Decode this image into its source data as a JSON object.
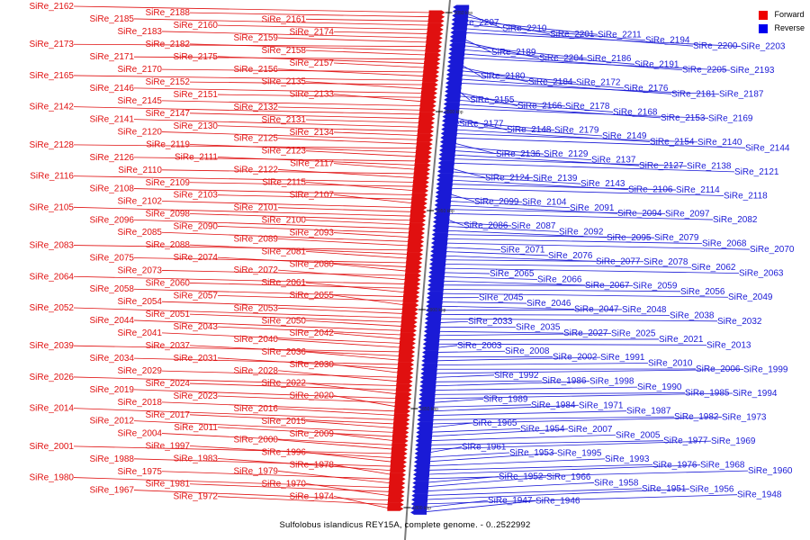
{
  "colors": {
    "forward": "#e01010",
    "reverse": "#1a1ad6",
    "backbone": "#7a7a7a"
  },
  "legend": [
    {
      "label": "Forward",
      "color": "#ee0000"
    },
    {
      "label": "Reverse",
      "color": "#0000ee"
    }
  ],
  "caption": "Sulfolobus islandicus REY15A, complete genome. - 0..2522992",
  "ticks": [
    "2050 kbp",
    "2000 kbp",
    "1950 kbp",
    "1900 kbp",
    "1850 kbp",
    "1800 kbp"
  ],
  "forward_genes": [
    "SiRe_2162",
    "SiRe_2188",
    "SiRe_2161",
    "SiRe_2185",
    "SiRe_2160",
    "SiRe_2174",
    "SiRe_2183",
    "SiRe_2159",
    "SiRe_2173",
    "SiRe_2182",
    "SiRe_2158",
    "SiRe_2171",
    "SiRe_2175",
    "SiRe_2157",
    "SiRe_2170",
    "SiRe_2156",
    "SiRe_2165",
    "SiRe_2152",
    "SiRe_2135",
    "SiRe_2146",
    "SiRe_2151",
    "SiRe_2133",
    "SiRe_2145",
    "SiRe_2132",
    "SiRe_2142",
    "SiRe_2147",
    "SiRe_2131",
    "SiRe_2141",
    "SiRe_2130",
    "SiRe_2134",
    "SiRe_2120",
    "SiRe_2125",
    "SiRe_2128",
    "SiRe_2119",
    "SiRe_2123",
    "SiRe_2126",
    "SiRe_2111",
    "SiRe_2117",
    "SiRe_2110",
    "SiRe_2122",
    "SiRe_2116",
    "SiRe_2109",
    "SiRe_2115",
    "SiRe_2108",
    "SiRe_2103",
    "SiRe_2107",
    "SiRe_2102",
    "SiRe_2101",
    "SiRe_2105",
    "SiRe_2098",
    "SiRe_2100",
    "SiRe_2096",
    "SiRe_2090",
    "SiRe_2093",
    "SiRe_2085",
    "SiRe_2089",
    "SiRe_2083",
    "SiRe_2088",
    "SiRe_2081",
    "SiRe_2075",
    "SiRe_2074",
    "SiRe_2080",
    "SiRe_2073",
    "SiRe_2072",
    "SiRe_2064",
    "SiRe_2060",
    "SiRe_2061",
    "SiRe_2058",
    "SiRe_2057",
    "SiRe_2055",
    "SiRe_2054",
    "SiRe_2053",
    "SiRe_2052",
    "SiRe_2051",
    "SiRe_2050",
    "SiRe_2044",
    "SiRe_2043",
    "SiRe_2042",
    "SiRe_2041",
    "SiRe_2040",
    "SiRe_2039",
    "SiRe_2037",
    "SiRe_2036",
    "SiRe_2034",
    "SiRe_2031",
    "SiRe_2030",
    "SiRe_2029",
    "SiRe_2028",
    "SiRe_2026",
    "SiRe_2024",
    "SiRe_2022",
    "SiRe_2019",
    "SiRe_2023",
    "SiRe_2020",
    "SiRe_2018",
    "SiRe_2016",
    "SiRe_2014",
    "SiRe_2017",
    "SiRe_2015",
    "SiRe_2012",
    "SiRe_2011",
    "SiRe_2009",
    "SiRe_2004",
    "SiRe_2000",
    "SiRe_2001",
    "SiRe_1997",
    "SiRe_1996",
    "SiRe_1988",
    "SiRe_1983",
    "SiRe_1978",
    "SiRe_1975",
    "SiRe_1979",
    "SiRe_1980",
    "SiRe_1981",
    "SiRe_1970",
    "SiRe_1967",
    "SiRe_1972",
    "SiRe_1974"
  ],
  "reverse_genes": [
    "SiRe_2207",
    "SiRe_2210",
    "SiRe_2201",
    "SiRe_2211",
    "SiRe_2194",
    "SiRe_2200",
    "SiRe_2203",
    "SiRe_2189",
    "SiRe_2204",
    "SiRe_2186",
    "SiRe_2191",
    "SiRe_2205",
    "SiRe_2193",
    "SiRe_2180",
    "SiRe_2184",
    "SiRe_2172",
    "SiRe_2176",
    "SiRe_2181",
    "SiRe_2187",
    "SiRe_2155",
    "SiRe_2166",
    "SiRe_2178",
    "SiRe_2168",
    "SiRe_2153",
    "SiRe_2169",
    "SiRe_2177",
    "SiRe_2148",
    "SiRe_2179",
    "SiRe_2149",
    "SiRe_2154",
    "SiRe_2140",
    "SiRe_2144",
    "SiRe_2136",
    "SiRe_2129",
    "SiRe_2137",
    "SiRe_2127",
    "SiRe_2138",
    "SiRe_2121",
    "SiRe_2124",
    "SiRe_2139",
    "SiRe_2143",
    "SiRe_2106",
    "SiRe_2114",
    "SiRe_2118",
    "SiRe_2099",
    "SiRe_2104",
    "SiRe_2091",
    "SiRe_2094",
    "SiRe_2097",
    "SiRe_2082",
    "SiRe_2086",
    "SiRe_2087",
    "SiRe_2092",
    "SiRe_2095",
    "SiRe_2079",
    "SiRe_2068",
    "SiRe_2070",
    "SiRe_2071",
    "SiRe_2076",
    "SiRe_2077",
    "SiRe_2078",
    "SiRe_2062",
    "SiRe_2063",
    "SiRe_2065",
    "SiRe_2066",
    "SiRe_2067",
    "SiRe_2059",
    "SiRe_2056",
    "SiRe_2049",
    "SiRe_2045",
    "SiRe_2046",
    "SiRe_2047",
    "SiRe_2048",
    "SiRe_2038",
    "SiRe_2032",
    "SiRe_2033",
    "SiRe_2035",
    "SiRe_2027",
    "SiRe_2025",
    "SiRe_2021",
    "SiRe_2013",
    "SiRe_2003",
    "SiRe_2008",
    "SiRe_2002",
    "SiRe_1991",
    "SiRe_2010",
    "SiRe_2006",
    "SiRe_1999",
    "SiRe_1992",
    "SiRe_1986",
    "SiRe_1998",
    "SiRe_1990",
    "SiRe_1985",
    "SiRe_1994",
    "SiRe_1989",
    "SiRe_1984",
    "SiRe_1971",
    "SiRe_1987",
    "SiRe_1982",
    "SiRe_1973",
    "SiRe_1965",
    "SiRe_1954",
    "SiRe_2007",
    "SiRe_2005",
    "SiRe_1977",
    "SiRe_1969",
    "SiRe_1961",
    "SiRe_1953",
    "SiRe_1995",
    "SiRe_1993",
    "SiRe_1976",
    "SiRe_1968",
    "SiRe_1960",
    "SiRe_1952",
    "SiRe_1966",
    "SiRe_1958",
    "SiRe_1951",
    "SiRe_1956",
    "SiRe_1948",
    "SiRe_1947",
    "SiRe_1946"
  ]
}
